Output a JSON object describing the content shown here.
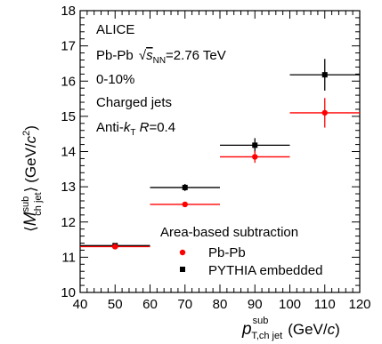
{
  "chart_data": {
    "type": "scatter",
    "title": "",
    "xlabel": {
      "symbol": "p",
      "sup": "sub",
      "sub": "T,ch jet",
      "unit": "(GeV/",
      "unit_italic": "c",
      "unit_end": ")"
    },
    "ylabel": {
      "open": "⟨",
      "symbol": "M",
      "sup": "sub",
      "sub": "ch jet",
      "close": "⟩",
      "unit": "(GeV/",
      "unit_italic": "c",
      "unit_sup": "2",
      "unit_end": ")"
    },
    "xlim": [
      40,
      120
    ],
    "ylim": [
      10,
      18
    ],
    "xticks": [
      "40",
      "50",
      "60",
      "70",
      "80",
      "90",
      "100",
      "110",
      "120"
    ],
    "yticks": [
      "10",
      "11",
      "12",
      "13",
      "14",
      "15",
      "16",
      "17",
      "18"
    ],
    "grid": false,
    "legend_position": "bottom-right",
    "legend_header": "Area-based subtraction",
    "annotations": {
      "experiment": "ALICE",
      "system": {
        "pre": "Pb-Pb ",
        "root_arg": "s",
        "root_sub": "NN",
        "post": "=2.76 TeV"
      },
      "centrality": "0-10%",
      "jets": "Charged jets",
      "algo": {
        "pre": "Anti-",
        "k": "k",
        "k_sub": "T",
        "r": " R",
        "post": "=0.4"
      }
    },
    "series": [
      {
        "name": "Pb-Pb",
        "marker": "circle",
        "color": "#ff0000",
        "points": [
          {
            "x": 50,
            "y": 11.3,
            "xerr": 10,
            "yerr": 0.05
          },
          {
            "x": 70,
            "y": 12.5,
            "xerr": 10,
            "yerr": 0.06
          },
          {
            "x": 90,
            "y": 13.85,
            "xerr": 10,
            "yerr": 0.17
          },
          {
            "x": 110,
            "y": 15.1,
            "xerr": 10,
            "yerr": 0.42
          }
        ]
      },
      {
        "name": "PYTHIA embedded",
        "marker": "square",
        "color": "#000000",
        "points": [
          {
            "x": 50,
            "y": 11.33,
            "xerr": 10,
            "yerr": 0.07
          },
          {
            "x": 70,
            "y": 12.98,
            "xerr": 10,
            "yerr": 0.1
          },
          {
            "x": 90,
            "y": 14.18,
            "xerr": 10,
            "yerr": 0.2
          },
          {
            "x": 110,
            "y": 16.18,
            "xerr": 10,
            "yerr": 0.45
          }
        ]
      }
    ]
  }
}
